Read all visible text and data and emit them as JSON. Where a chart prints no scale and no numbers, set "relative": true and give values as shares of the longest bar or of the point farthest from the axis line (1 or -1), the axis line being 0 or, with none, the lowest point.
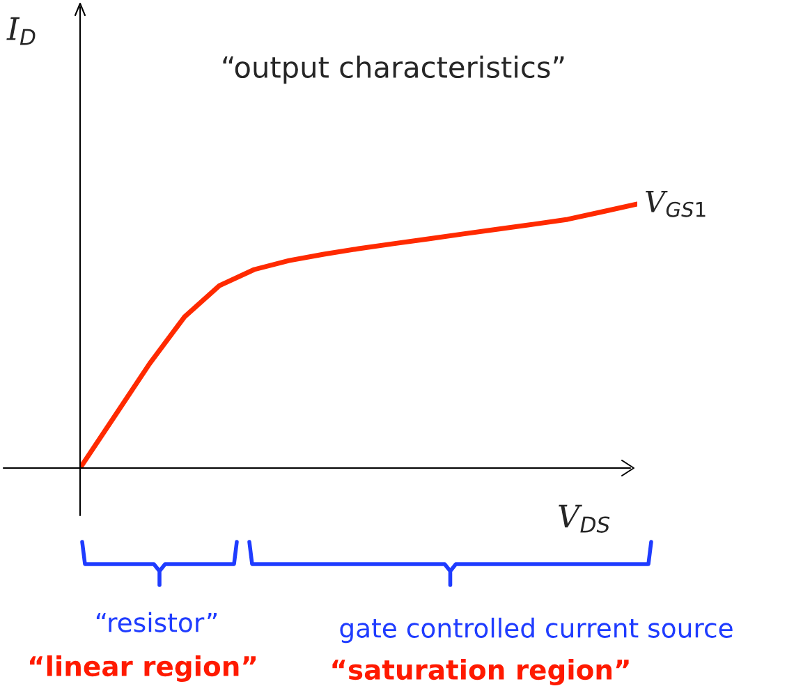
{
  "chart_data": {
    "type": "line",
    "relative": true,
    "title": "“output characteristics”",
    "xlabel": "V$_{DS}$",
    "categories": [
      null,
      null,
      null,
      null,
      null,
      null,
      null,
      null,
      null,
      null,
      null,
      null,
      null,
      null,
      null,
      null,
      null
    ],
    "series": [
      {
        "name": "V$_{GS1}$",
        "color": "#ff2a00",
        "values": [
          0,
          0.198,
          0.396,
          0.573,
          0.691,
          0.752,
          0.786,
          0.81,
          0.831,
          0.85,
          0.868,
          0.887,
          0.905,
          0.923,
          0.942,
          0.971,
          1
        ]
      }
    ],
    "annotations": [
      "“resistor”",
      "“linear region”",
      "gate controlled current source",
      "“saturation region”",
      "I$_{D}$"
    ],
    "legend": false,
    "marker": "none",
    "line_style": "solid"
  }
}
